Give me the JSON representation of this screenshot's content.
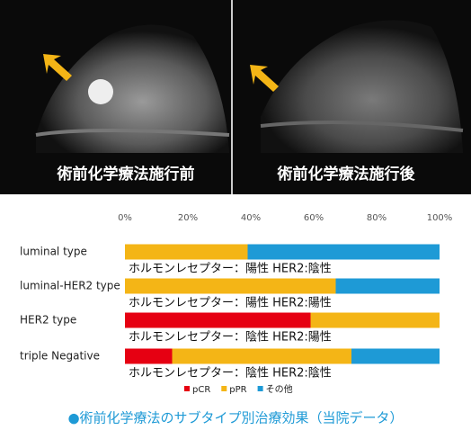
{
  "images": [
    {
      "label": "術前化学療法施行前"
    },
    {
      "label": "術前化学療法施行後"
    }
  ],
  "chart_data": {
    "type": "stacked-bar",
    "orientation": "horizontal",
    "categories": [
      "luminal type",
      "luminal-HER2 type",
      "HER2 type",
      "triple Negative"
    ],
    "category_notes": [
      "ホルモンレセプター：陽性 HER2:陰性",
      "ホルモンレセプター：陽性 HER2:陽性",
      "ホルモンレセプター：陰性 HER2:陽性",
      "ホルモンレセプター：陰性 HER2:陰性"
    ],
    "series": [
      {
        "name": "pCR",
        "color": "#e60012",
        "values": [
          0,
          0,
          59,
          15
        ]
      },
      {
        "name": "pPR",
        "color": "#f4b516",
        "values": [
          39,
          67,
          41,
          57
        ]
      },
      {
        "name": "その他",
        "color": "#1e9ad6",
        "values": [
          61,
          33,
          0,
          28
        ]
      }
    ],
    "xlim": [
      0,
      100
    ],
    "xticks": [
      {
        "value": 0,
        "label": "0%"
      },
      {
        "value": 20,
        "label": "20%"
      },
      {
        "value": 40,
        "label": "40%"
      },
      {
        "value": 60,
        "label": "60%"
      },
      {
        "value": 80,
        "label": "80%"
      },
      {
        "value": 100,
        "label": "100%"
      }
    ],
    "legend": "bottom"
  },
  "caption": "●術前化学療法のサブタイプ別治療効果（当院データ）"
}
